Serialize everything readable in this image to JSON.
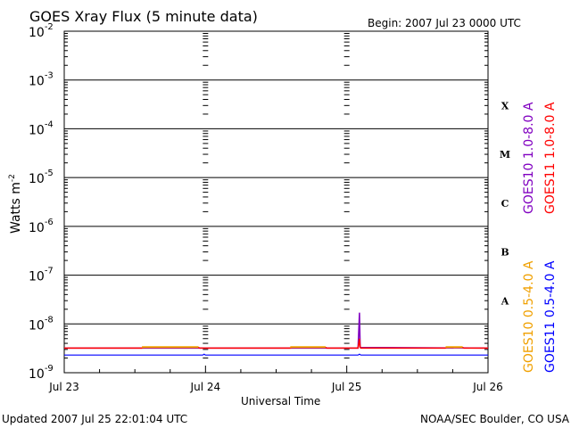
{
  "chart_data": {
    "type": "line",
    "title": "GOES Xray Flux (5 minute data)",
    "begin_label": "Begin:  2007 Jul 23 0000 UTC",
    "xlabel": "Universal Time",
    "ylabel_base": "Watts m",
    "ylabel_exp": "-2",
    "x_ticks": [
      "Jul 23",
      "Jul 24",
      "Jul 25",
      "Jul 26"
    ],
    "x_range_days": [
      0,
      3
    ],
    "y_scale": "log",
    "y_decade_range": [
      -9,
      -2
    ],
    "y_ticks": [
      {
        "exp": -2,
        "base": "10",
        "sup": "-2"
      },
      {
        "exp": -3,
        "base": "10",
        "sup": "-3"
      },
      {
        "exp": -4,
        "base": "10",
        "sup": "-4"
      },
      {
        "exp": -5,
        "base": "10",
        "sup": "-5"
      },
      {
        "exp": -6,
        "base": "10",
        "sup": "-6"
      },
      {
        "exp": -7,
        "base": "10",
        "sup": "-7"
      },
      {
        "exp": -8,
        "base": "10",
        "sup": "-8"
      },
      {
        "exp": -9,
        "base": "10",
        "sup": "-9"
      }
    ],
    "flare_classes": [
      {
        "label": "X",
        "exp": -4
      },
      {
        "label": "M",
        "exp": -5
      },
      {
        "label": "C",
        "exp": -6
      },
      {
        "label": "B",
        "exp": -7
      },
      {
        "label": "A",
        "exp": -8
      }
    ],
    "series": [
      {
        "name": "GOES10 1.0-8.0 A",
        "color": "#8000c0",
        "points": [
          [
            0,
            3.2e-09
          ],
          [
            2.08,
            3.2e-09
          ],
          [
            2.09,
            1.7e-08
          ],
          [
            2.095,
            3.3e-09
          ],
          [
            3,
            3.2e-09
          ]
        ]
      },
      {
        "name": "GOES11 1.0-8.0 A",
        "color": "#ff0000",
        "points": [
          [
            0,
            3.2e-09
          ],
          [
            0.55,
            3.2e-09
          ],
          [
            0.56,
            3.3e-09
          ],
          [
            0.95,
            3.3e-09
          ],
          [
            0.96,
            3.2e-09
          ],
          [
            1.6,
            3.2e-09
          ],
          [
            1.61,
            3.3e-09
          ],
          [
            1.85,
            3.3e-09
          ],
          [
            1.86,
            3.2e-09
          ],
          [
            2.08,
            3.2e-09
          ],
          [
            2.09,
            5e-09
          ],
          [
            2.095,
            3.3e-09
          ],
          [
            2.1,
            3.2e-09
          ],
          [
            2.7,
            3.2e-09
          ],
          [
            2.71,
            3.3e-09
          ],
          [
            2.82,
            3.3e-09
          ],
          [
            2.83,
            3.2e-09
          ],
          [
            3,
            3.2e-09
          ]
        ]
      },
      {
        "name": "GOES10 0.5-4.0 A",
        "color": "#f0a000",
        "points": [
          [
            0.55,
            3.35e-09
          ],
          [
            0.95,
            3.35e-09
          ],
          [
            1.6,
            3.35e-09
          ],
          [
            1.85,
            3.35e-09
          ],
          [
            2.7,
            3.35e-09
          ],
          [
            2.82,
            3.35e-09
          ]
        ]
      },
      {
        "name": "GOES11 0.5-4.0 A",
        "color": "#0000ff",
        "points": [
          [
            0,
            2.3e-09
          ],
          [
            0.98,
            2.3e-09
          ],
          [
            0.99,
            2.4e-09
          ],
          [
            1.0,
            2.3e-09
          ],
          [
            2.08,
            2.3e-09
          ],
          [
            2.09,
            2.4e-09
          ],
          [
            2.1,
            2.3e-09
          ],
          [
            3,
            2.3e-09
          ]
        ]
      }
    ],
    "footer_left": "Updated 2007 Jul 25 22:01:04 UTC",
    "footer_right": "NOAA/SEC Boulder, CO USA"
  }
}
